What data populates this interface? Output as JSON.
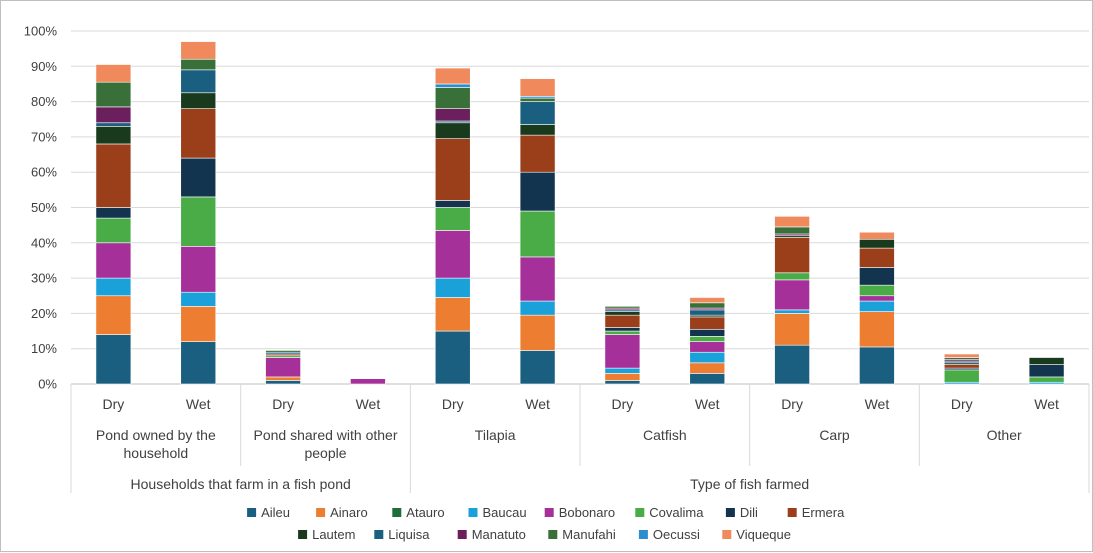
{
  "chart_data": {
    "type": "bar",
    "stacked": true,
    "categories": [
      "Dry",
      "Wet",
      "Dry",
      "Wet",
      "Dry",
      "Wet",
      "Dry",
      "Wet",
      "Dry",
      "Wet",
      "Dry",
      "Wet"
    ],
    "subgroups": [
      {
        "label": "Pond owned by the household",
        "span": 2
      },
      {
        "label": "Pond shared with other people",
        "span": 2
      },
      {
        "label": "Tilapia",
        "span": 2
      },
      {
        "label": "Catfish",
        "span": 2
      },
      {
        "label": "Carp",
        "span": 2
      },
      {
        "label": "Other",
        "span": 2
      }
    ],
    "groups": [
      {
        "label": "Households that farm in a fish pond",
        "span": 4
      },
      {
        "label": "Type of fish farmed",
        "span": 8
      }
    ],
    "ylim": [
      0,
      100
    ],
    "yticks": [
      "0%",
      "10%",
      "20%",
      "30%",
      "40%",
      "50%",
      "60%",
      "70%",
      "80%",
      "90%",
      "100%"
    ],
    "grid": true,
    "legend_position": "bottom",
    "series": [
      {
        "name": "Aileu",
        "color": "#1a5f80",
        "values": [
          14,
          12,
          1,
          0,
          15,
          9.5,
          1,
          3,
          11,
          10.5,
          0,
          0
        ]
      },
      {
        "name": "Ainaro",
        "color": "#ed7d31",
        "values": [
          11,
          10,
          1,
          0,
          9.5,
          10,
          2,
          3,
          9,
          10,
          0,
          0
        ]
      },
      {
        "name": "Atauro",
        "color": "#1e6e3c",
        "values": [
          0,
          0,
          0,
          0,
          0,
          0,
          0,
          0,
          0,
          0,
          0,
          0
        ]
      },
      {
        "name": "Baucau",
        "color": "#1ba1d9",
        "values": [
          5,
          4,
          0,
          0,
          5.5,
          4,
          1.5,
          3,
          1,
          3,
          0.5,
          0.5
        ]
      },
      {
        "name": "Bobonaro",
        "color": "#a6309a",
        "values": [
          10,
          13,
          5.5,
          1.5,
          13.5,
          12.5,
          9.5,
          3,
          8.5,
          1.5,
          0,
          0
        ]
      },
      {
        "name": "Covalima",
        "color": "#4aac47",
        "values": [
          7,
          14,
          0.5,
          0,
          6.5,
          13,
          1,
          1.5,
          2,
          3,
          3.5,
          1.5
        ]
      },
      {
        "name": "Dili",
        "color": "#13344e",
        "values": [
          3,
          11,
          0,
          0,
          2,
          11,
          1,
          2,
          0,
          5,
          0.5,
          3.5
        ]
      },
      {
        "name": "Ermera",
        "color": "#9b3f1b",
        "values": [
          18,
          14,
          0.5,
          0,
          17.5,
          10.5,
          3.5,
          3.5,
          10,
          5.5,
          1,
          0
        ]
      },
      {
        "name": "Lautem",
        "color": "#1a3a1e",
        "values": [
          5,
          4.5,
          0,
          0,
          4.5,
          3,
          1,
          0.5,
          0.5,
          2.5,
          0.5,
          2
        ]
      },
      {
        "name": "Liquisa",
        "color": "#1a5f80",
        "values": [
          1,
          6.5,
          0.5,
          0,
          0.5,
          6.5,
          0.5,
          1.5,
          0,
          0,
          0.5,
          0
        ]
      },
      {
        "name": "Manatuto",
        "color": "#6b1f5d",
        "values": [
          4.5,
          0,
          0,
          0,
          3.5,
          0,
          0.5,
          0.5,
          0.5,
          0,
          0.5,
          0
        ]
      },
      {
        "name": "Manufahi",
        "color": "#39703a",
        "values": [
          7,
          3,
          0.5,
          0,
          6,
          1,
          0.5,
          1.5,
          2,
          0,
          0.5,
          0
        ]
      },
      {
        "name": "Oecussi",
        "color": "#2b8fcf",
        "values": [
          0,
          0,
          0,
          0,
          1,
          0.5,
          0,
          0,
          0,
          0,
          0,
          0
        ]
      },
      {
        "name": "Viqueque",
        "color": "#f08a5d",
        "values": [
          5,
          5,
          0,
          0,
          4.5,
          5,
          0,
          1.5,
          3,
          2,
          1,
          0
        ]
      }
    ]
  }
}
